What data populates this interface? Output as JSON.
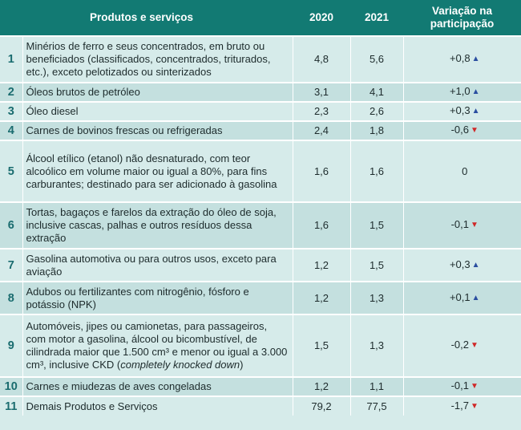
{
  "header": {
    "products": "Produtos e serviços",
    "y2020": "2020",
    "y2021": "2021",
    "variation_line1": "Variação na",
    "variation_line2": "participação"
  },
  "rows": [
    {
      "rank": "1",
      "desc": "Minérios de ferro e seus concentrados, em bruto ou beneficiados (classificados, concentrados, triturados, etc.), exceto pelotizados ou sinterizados",
      "y2020": "4,8",
      "y2021": "5,6",
      "var": "+0,8",
      "dir": "up-icon"
    },
    {
      "rank": "2",
      "desc": "Óleos brutos de petróleo",
      "y2020": "3,1",
      "y2021": "4,1",
      "var": "+1,0",
      "dir": "up-icon"
    },
    {
      "rank": "3",
      "desc": "Óleo diesel",
      "y2020": "2,3",
      "y2021": "2,6",
      "var": "+0,3",
      "dir": "up-icon"
    },
    {
      "rank": "4",
      "desc": "Carnes de bovinos frescas ou refrigeradas",
      "y2020": "2,4",
      "y2021": "1,8",
      "var": "-0,6",
      "dir": "down-icon"
    },
    {
      "rank": "5",
      "desc": "Álcool etílico (etanol) não desnaturado, com teor alcoólico em volume maior ou igual a 80%, para fins carburantes; destinado para ser adicionado à gasolina",
      "y2020": "1,6",
      "y2021": "1,6",
      "var": "0",
      "dir": ""
    },
    {
      "rank": "6",
      "desc": "Tortas, bagaços e farelos da extração do óleo de soja, inclusive cascas, palhas e outros resíduos dessa extração",
      "y2020": "1,6",
      "y2021": "1,5",
      "var": "-0,1",
      "dir": "down-icon"
    },
    {
      "rank": "7",
      "desc": "Gasolina automotiva ou para outros usos, exceto para aviação",
      "y2020": "1,2",
      "y2021": "1,5",
      "var": "+0,3",
      "dir": "up-icon"
    },
    {
      "rank": "8",
      "desc": "Adubos ou fertilizantes com nitrogênio, fósforo e potássio (NPK)",
      "y2020": "1,2",
      "y2021": "1,3",
      "var": "+0,1",
      "dir": "up-icon"
    },
    {
      "rank": "9",
      "desc_pre": "Automóveis, jipes ou camionetas, para passageiros, com motor a gasolina, álcool ou bicombustível, de cilindrada maior que 1.500 cm³ e menor ou igual a 3.000 cm³, inclusive CKD (",
      "desc_em": "completely knocked down",
      "desc_post": ")",
      "y2020": "1,5",
      "y2021": "1,3",
      "var": "-0,2",
      "dir": "down-icon"
    },
    {
      "rank": "10",
      "desc": "Carnes e miudezas de aves congeladas",
      "y2020": "1,2",
      "y2021": "1,1",
      "var": "-0,1",
      "dir": "down-icon"
    },
    {
      "rank": "11",
      "desc": "Demais Produtos e Serviços",
      "y2020": "79,2",
      "y2021": "77,5",
      "var": "-1,7",
      "dir": "down-icon"
    }
  ]
}
